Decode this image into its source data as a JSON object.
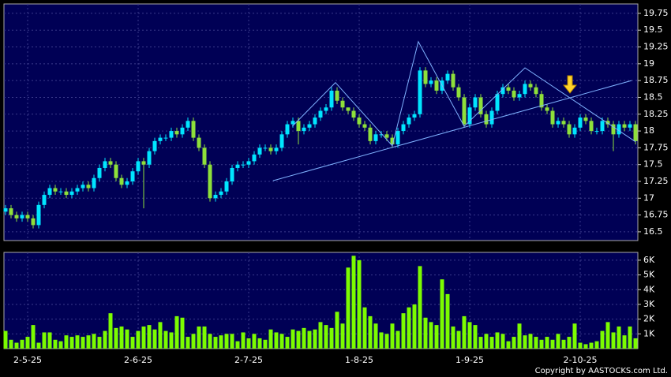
{
  "chart_data": [
    {
      "type": "candlestick",
      "xlim": [
        0,
        114
      ],
      "ylim": [
        16.37,
        19.89
      ],
      "yticks": [
        16.5,
        16.75,
        17,
        17.25,
        17.5,
        17.75,
        18,
        18.25,
        18.5,
        18.75,
        19,
        19.25,
        19.5,
        19.75
      ],
      "xticks": [
        {
          "value": 4,
          "label": "2-5-25"
        },
        {
          "value": 24,
          "label": "2-6-25"
        },
        {
          "value": 44,
          "label": "2-7-25"
        },
        {
          "value": 64,
          "label": "1-8-25"
        },
        {
          "value": 84,
          "label": "1-9-25"
        },
        {
          "value": 104,
          "label": "2-10-25"
        }
      ],
      "grid": true,
      "up_color": "#00e5ff",
      "down_color": "#8ee03a",
      "open": [
        16.8,
        16.85,
        16.75,
        16.7,
        16.75,
        16.7,
        16.6,
        16.9,
        17.05,
        17.15,
        17.1,
        17.1,
        17.05,
        17.1,
        17.15,
        17.2,
        17.15,
        17.3,
        17.45,
        17.55,
        17.5,
        17.3,
        17.2,
        17.25,
        17.4,
        17.55,
        17.5,
        17.7,
        17.85,
        17.9,
        17.9,
        18.0,
        17.95,
        18.05,
        18.15,
        17.9,
        17.75,
        17.5,
        17.0,
        17.05,
        17.1,
        17.25,
        17.45,
        17.5,
        17.5,
        17.55,
        17.65,
        17.75,
        17.75,
        17.7,
        17.75,
        17.95,
        18.1,
        18.15,
        18.0,
        18.05,
        18.1,
        18.2,
        18.3,
        18.35,
        18.6,
        18.45,
        18.35,
        18.3,
        18.2,
        18.1,
        18.05,
        17.85,
        17.95,
        17.95,
        17.9,
        17.8,
        18.0,
        18.1,
        18.2,
        18.25,
        18.9,
        18.7,
        18.75,
        18.6,
        18.75,
        18.85,
        18.65,
        18.5,
        18.1,
        18.35,
        18.5,
        18.25,
        18.1,
        18.3,
        18.55,
        18.65,
        18.6,
        18.5,
        18.55,
        18.7,
        18.65,
        18.55,
        18.35,
        18.3,
        18.1,
        18.15,
        18.1,
        17.95,
        18.05,
        18.2,
        18.15,
        18.0,
        18.0,
        18.15,
        18.1,
        17.95,
        18.1,
        18.05,
        18.1
      ],
      "high": [
        16.9,
        16.9,
        16.8,
        16.8,
        16.8,
        16.75,
        16.95,
        17.1,
        17.2,
        17.2,
        17.15,
        17.15,
        17.15,
        17.2,
        17.25,
        17.25,
        17.35,
        17.5,
        17.6,
        17.6,
        17.55,
        17.35,
        17.3,
        17.45,
        17.6,
        17.6,
        17.75,
        17.9,
        17.95,
        17.95,
        18.05,
        18.05,
        18.1,
        18.2,
        18.2,
        17.95,
        17.8,
        17.55,
        17.1,
        17.15,
        17.3,
        17.5,
        17.55,
        17.55,
        17.6,
        17.7,
        17.8,
        17.8,
        17.8,
        17.8,
        18.0,
        18.15,
        18.2,
        18.2,
        18.1,
        18.15,
        18.25,
        18.35,
        18.4,
        18.65,
        18.65,
        18.5,
        18.35,
        18.35,
        18.25,
        18.15,
        18.1,
        18.0,
        18.0,
        18.0,
        17.95,
        18.05,
        18.15,
        18.25,
        18.3,
        18.95,
        18.95,
        18.8,
        18.8,
        18.8,
        18.9,
        18.9,
        18.7,
        18.55,
        18.4,
        18.55,
        18.55,
        18.3,
        18.35,
        18.6,
        18.7,
        18.7,
        18.65,
        18.6,
        18.75,
        18.75,
        18.7,
        18.6,
        18.4,
        18.35,
        18.2,
        18.2,
        18.15,
        18.1,
        18.25,
        18.25,
        18.2,
        18.05,
        18.2,
        18.2,
        18.15,
        18.15,
        18.15,
        18.15,
        18.15
      ],
      "low": [
        16.75,
        16.7,
        16.65,
        16.65,
        16.65,
        16.55,
        16.55,
        16.85,
        17.0,
        17.05,
        17.05,
        17.0,
        17.0,
        17.05,
        17.1,
        17.1,
        17.1,
        17.25,
        17.4,
        17.45,
        17.25,
        17.15,
        17.15,
        17.2,
        17.35,
        16.85,
        17.45,
        17.65,
        17.8,
        17.85,
        17.85,
        17.9,
        17.9,
        18.0,
        17.85,
        17.7,
        17.45,
        16.95,
        16.95,
        17.0,
        17.05,
        17.2,
        17.4,
        17.45,
        17.45,
        17.5,
        17.6,
        17.7,
        17.65,
        17.65,
        17.7,
        17.9,
        18.05,
        17.8,
        17.95,
        18.0,
        18.05,
        18.15,
        18.25,
        18.3,
        18.4,
        18.3,
        18.25,
        18.15,
        18.05,
        18.0,
        17.8,
        17.8,
        17.9,
        17.85,
        17.75,
        17.75,
        17.95,
        18.05,
        18.15,
        18.2,
        18.65,
        18.65,
        18.55,
        18.55,
        18.7,
        18.6,
        18.45,
        18.05,
        18.05,
        18.3,
        18.2,
        18.05,
        18.05,
        18.25,
        18.5,
        18.55,
        18.45,
        18.45,
        18.5,
        18.6,
        18.5,
        18.3,
        18.25,
        18.05,
        18.05,
        18.05,
        17.9,
        17.9,
        18.0,
        18.1,
        17.95,
        17.95,
        17.95,
        18.05,
        17.7,
        17.9,
        18.0,
        18.0,
        17.8
      ],
      "close": [
        16.85,
        16.75,
        16.7,
        16.75,
        16.7,
        16.6,
        16.9,
        17.05,
        17.15,
        17.1,
        17.1,
        17.05,
        17.1,
        17.15,
        17.2,
        17.15,
        17.3,
        17.45,
        17.55,
        17.5,
        17.3,
        17.2,
        17.25,
        17.4,
        17.55,
        17.5,
        17.7,
        17.85,
        17.9,
        17.9,
        18.0,
        17.95,
        18.05,
        18.15,
        17.9,
        17.75,
        17.5,
        17.0,
        17.05,
        17.1,
        17.25,
        17.45,
        17.5,
        17.5,
        17.55,
        17.65,
        17.75,
        17.75,
        17.7,
        17.75,
        17.95,
        18.1,
        18.15,
        18.0,
        18.05,
        18.1,
        18.2,
        18.3,
        18.35,
        18.6,
        18.45,
        18.35,
        18.3,
        18.2,
        18.1,
        18.05,
        17.85,
        17.95,
        17.95,
        17.9,
        17.8,
        18.0,
        18.1,
        18.2,
        18.25,
        18.9,
        18.7,
        18.75,
        18.6,
        18.75,
        18.85,
        18.65,
        18.5,
        18.1,
        18.35,
        18.5,
        18.25,
        18.1,
        18.3,
        18.55,
        18.65,
        18.6,
        18.5,
        18.55,
        18.7,
        18.65,
        18.55,
        18.35,
        18.3,
        18.1,
        18.15,
        18.1,
        17.95,
        18.05,
        18.2,
        18.15,
        18.0,
        18.0,
        18.15,
        18.1,
        17.95,
        18.1,
        18.05,
        18.1,
        17.85
      ],
      "trendlines": [
        {
          "x": [
            48.4,
            113.3
          ],
          "y": [
            17.26,
            18.75
          ],
          "color": "#7fb2ff"
        },
        {
          "x": [
            51.9,
            59.7,
            70,
            74.7,
            83,
            94,
            114
          ],
          "y": [
            18.07,
            18.72,
            17.78,
            19.33,
            18.07,
            18.94,
            17.84
          ],
          "color": "#7fb2ff"
        }
      ]
    },
    {
      "type": "bar",
      "xlim": [
        0,
        114
      ],
      "ylim": [
        0,
        6530
      ],
      "color": "#7cfc00",
      "grid": true,
      "yticks": [
        {
          "value": 1000,
          "label": "1K"
        },
        {
          "value": 2000,
          "label": "2K"
        },
        {
          "value": 3000,
          "label": "3K"
        },
        {
          "value": 4000,
          "label": "4K"
        },
        {
          "value": 5000,
          "label": "5K"
        },
        {
          "value": 6000,
          "label": "6K"
        }
      ],
      "values": [
        1200,
        600,
        400,
        600,
        800,
        1600,
        400,
        1100,
        1100,
        600,
        500,
        900,
        800,
        900,
        800,
        900,
        1000,
        800,
        1200,
        2400,
        1400,
        1500,
        1300,
        800,
        1200,
        1500,
        1600,
        1300,
        1800,
        1200,
        1100,
        2200,
        2100,
        800,
        1000,
        1500,
        1500,
        1000,
        800,
        900,
        1000,
        1000,
        500,
        1100,
        700,
        1000,
        700,
        600,
        1300,
        1100,
        1000,
        800,
        1300,
        1200,
        1400,
        1200,
        1300,
        1800,
        1600,
        1400,
        2500,
        1700,
        5500,
        6300,
        6000,
        2800,
        2200,
        1700,
        1100,
        1000,
        1700,
        1200,
        2400,
        2800,
        3000,
        5600,
        2100,
        1800,
        1600,
        4700,
        3700,
        1500,
        1200,
        2200,
        1800,
        1600,
        800,
        1000,
        800,
        1100,
        1000,
        500,
        800,
        1700,
        900,
        1000,
        800,
        600,
        800,
        600,
        1000,
        600,
        800,
        1700,
        400,
        300,
        400,
        500,
        1200,
        1800,
        1100,
        1500,
        900,
        1500,
        700
      ],
      "copyright": "Copyright by AASTOCKS.com Ltd."
    }
  ]
}
